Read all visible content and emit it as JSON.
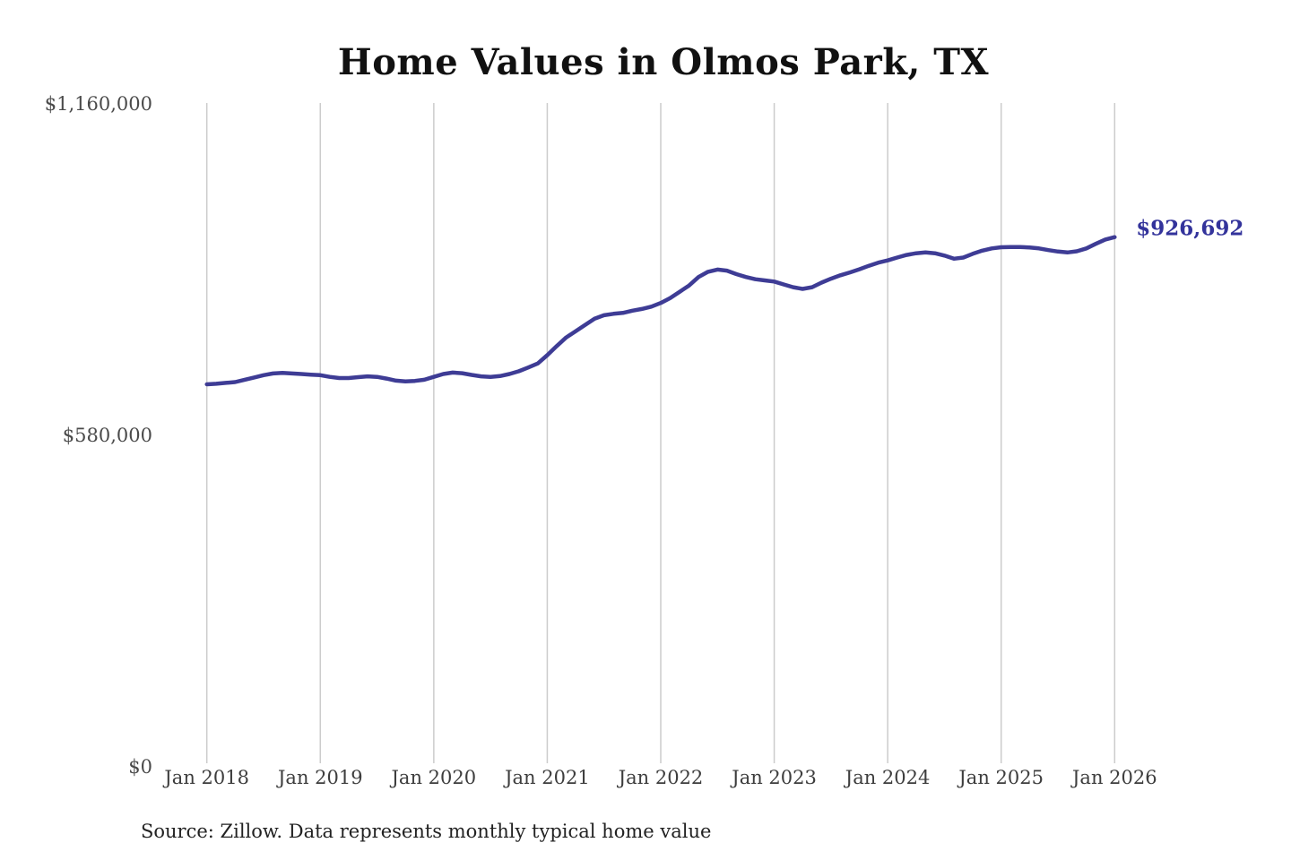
{
  "title": "Home Values in Olmos Park, TX",
  "source_note": "Source: Zillow. Data represents monthly typical home value",
  "end_label": "$926,692",
  "colors": {
    "line": "#3e3c95",
    "end_label": "#33339b",
    "gridline": "#cccccc",
    "title": "#111111",
    "axis_text": "#4a4a4a",
    "background": "#ffffff"
  },
  "chart_data": {
    "type": "line",
    "title": "Home Values in Olmos Park, TX",
    "xlabel": "",
    "ylabel": "",
    "ylim": [
      0,
      1160000
    ],
    "y_ticks": [
      {
        "value": 0,
        "label": "$0"
      },
      {
        "value": 580000,
        "label": "$580,000"
      },
      {
        "value": 1160000,
        "label": "$1,160,000"
      }
    ],
    "x_tick_labels": [
      "Jan 2018",
      "Jan 2019",
      "Jan 2020",
      "Jan 2021",
      "Jan 2022",
      "Jan 2023",
      "Jan 2024",
      "Jan 2025",
      "Jan 2026"
    ],
    "months_per_tick": 12,
    "grid": "vertical-yearly",
    "legend": "none",
    "final_value": 926692,
    "series": [
      {
        "name": "Monthly typical home value",
        "start_month": "2018-01",
        "end_month": "2026-01",
        "values": [
          669000,
          670000,
          671500,
          673000,
          677000,
          681000,
          685000,
          688000,
          689000,
          688000,
          687000,
          686000,
          685000,
          682000,
          680000,
          680000,
          681500,
          683000,
          682000,
          679000,
          675500,
          674000,
          675000,
          677000,
          682000,
          687000,
          689500,
          688500,
          685500,
          683000,
          682000,
          683500,
          687000,
          692000,
          698500,
          705500,
          720000,
          736000,
          751000,
          762000,
          773000,
          784000,
          790000,
          792500,
          794000,
          798000,
          801000,
          805000,
          811500,
          820000,
          831000,
          842000,
          857000,
          866000,
          870000,
          868000,
          862000,
          857000,
          853000,
          851000,
          849000,
          844000,
          839000,
          836000,
          839000,
          847000,
          854000,
          860000,
          865000,
          870500,
          876500,
          882000,
          886000,
          891000,
          895500,
          898500,
          900000,
          898500,
          894500,
          889000,
          891000,
          897500,
          903000,
          907000,
          909000,
          909500,
          909500,
          908500,
          907000,
          904000,
          901500,
          900000,
          902000,
          907000,
          915000,
          922500,
          926692
        ]
      }
    ]
  }
}
